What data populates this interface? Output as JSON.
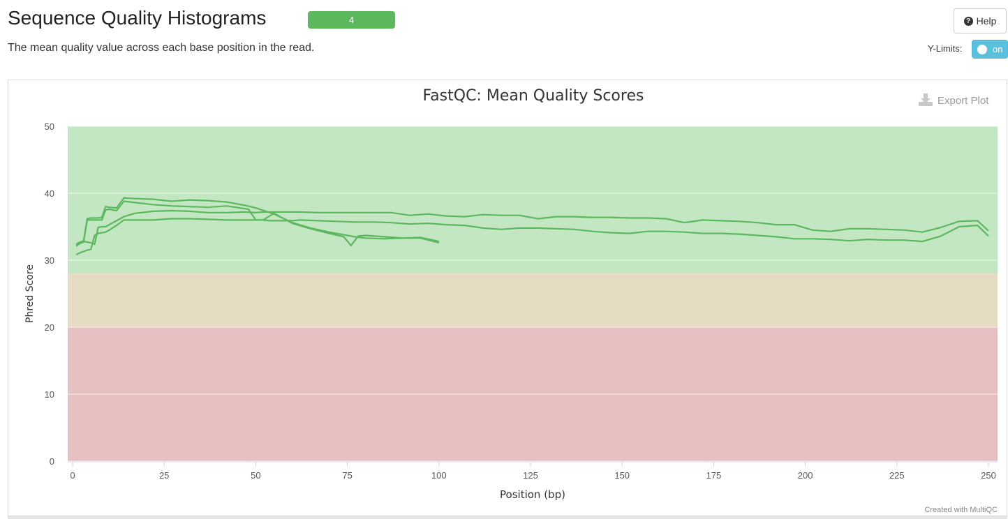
{
  "header": {
    "title": "Sequence Quality Histograms",
    "badge": "4",
    "subtitle": "The mean quality value across each base position in the read.",
    "help_label": "Help",
    "ylimits_label": "Y-Limits:",
    "ylimits_toggle": "on"
  },
  "plot": {
    "export_label": "Export Plot",
    "credit": "Created with MultiQC"
  },
  "colors": {
    "line": "#5cb85c",
    "band_good": "#c3e6c3",
    "band_warn": "#e6dcc3",
    "band_fail": "#e6c0c0"
  },
  "chart_data": {
    "type": "line",
    "title": "FastQC: Mean Quality Scores",
    "xlabel": "Position (bp)",
    "ylabel": "Phred Score",
    "xlim": [
      0,
      251
    ],
    "ylim": [
      0,
      50
    ],
    "x_ticks": [
      "0",
      "25",
      "50",
      "75",
      "100",
      "125",
      "150",
      "175",
      "200",
      "225",
      "250"
    ],
    "y_ticks": [
      "0",
      "10",
      "20",
      "30",
      "40",
      "50"
    ],
    "bands": [
      {
        "from": 28,
        "to": 50,
        "zone": "good"
      },
      {
        "from": 20,
        "to": 28,
        "zone": "warn"
      },
      {
        "from": 0,
        "to": 20,
        "zone": "fail"
      }
    ],
    "grid": true,
    "series": [
      {
        "x": [
          1,
          2,
          3,
          4,
          5,
          6,
          7,
          8,
          9,
          10,
          12,
          14,
          17,
          22,
          27,
          32,
          37,
          42,
          47,
          50,
          52,
          54,
          57,
          60,
          62,
          67,
          72,
          77,
          82,
          87,
          92,
          97,
          102,
          107,
          112,
          117,
          122,
          127,
          132,
          137,
          142,
          147,
          152,
          157,
          162,
          167,
          172,
          177,
          182,
          187,
          192,
          197,
          202,
          207,
          212,
          217,
          222,
          227,
          232,
          237,
          242,
          247,
          250
        ],
        "y": [
          32.2,
          32.6,
          32.8,
          32.7,
          32.6,
          32.4,
          34.9,
          35.0,
          35.0,
          35.3,
          35.9,
          36.5,
          37.0,
          37.3,
          37.4,
          37.3,
          37.1,
          37.1,
          37.2,
          37.1,
          37.2,
          37.2,
          37.2,
          37.2,
          37.2,
          37.1,
          37.1,
          37.1,
          37.1,
          37.1,
          36.7,
          36.9,
          36.6,
          36.5,
          36.8,
          36.7,
          36.7,
          36.2,
          36.5,
          36.5,
          36.4,
          36.4,
          36.3,
          36.3,
          36.2,
          35.6,
          36.0,
          35.9,
          35.8,
          35.6,
          35.3,
          35.3,
          34.5,
          34.3,
          34.7,
          34.7,
          34.6,
          34.5,
          34.2,
          34.9,
          35.8,
          35.9,
          34.4
        ]
      },
      {
        "x": [
          1,
          2,
          3,
          4,
          5,
          6,
          7,
          8,
          9,
          10,
          12,
          14,
          17,
          22,
          27,
          32,
          37,
          42,
          47,
          50,
          52,
          54,
          57,
          60,
          62,
          67,
          72,
          77,
          82,
          87,
          92,
          97,
          102,
          107,
          112,
          117,
          122,
          127,
          132,
          137,
          142,
          147,
          152,
          157,
          162,
          167,
          172,
          177,
          182,
          187,
          192,
          197,
          202,
          207,
          212,
          217,
          222,
          227,
          232,
          237,
          242,
          247,
          250
        ],
        "y": [
          30.8,
          31.1,
          31.3,
          31.5,
          31.6,
          33.7,
          34.0,
          34.1,
          34.2,
          34.5,
          35.2,
          36.0,
          36.0,
          36.0,
          36.2,
          36.2,
          36.1,
          36.0,
          36.0,
          36.0,
          36.0,
          35.9,
          35.9,
          35.9,
          36.0,
          35.9,
          35.8,
          35.7,
          35.7,
          35.6,
          35.4,
          35.5,
          35.3,
          35.2,
          34.8,
          34.6,
          34.8,
          34.8,
          34.7,
          34.6,
          34.3,
          34.1,
          34.0,
          34.3,
          34.3,
          34.2,
          34.0,
          34.0,
          33.9,
          33.7,
          33.5,
          33.2,
          33.2,
          33.1,
          32.9,
          33.1,
          33.0,
          33.0,
          32.8,
          33.6,
          35.0,
          35.2,
          33.6
        ]
      },
      {
        "x": [
          1,
          2,
          3,
          4,
          5,
          6,
          7,
          8,
          9,
          10,
          12,
          14,
          17,
          22,
          27,
          32,
          37,
          42,
          47,
          50,
          55,
          60,
          65,
          70,
          75,
          77,
          80,
          85,
          90,
          95,
          100
        ],
        "y": [
          32.1,
          32.5,
          32.7,
          36.2,
          36.3,
          36.3,
          36.3,
          36.4,
          38.0,
          37.9,
          37.8,
          39.3,
          39.2,
          39.1,
          38.8,
          39.0,
          38.9,
          38.7,
          38.2,
          37.8,
          36.9,
          35.6,
          34.8,
          34.2,
          33.7,
          33.5,
          33.3,
          33.2,
          33.3,
          33.4,
          32.8
        ]
      },
      {
        "x": [
          1,
          2,
          3,
          4,
          5,
          6,
          7,
          8,
          9,
          10,
          12,
          14,
          17,
          22,
          27,
          32,
          37,
          42,
          47,
          48,
          50,
          52,
          55,
          60,
          65,
          70,
          74,
          76,
          78,
          80,
          85,
          90,
          95,
          100
        ],
        "y": [
          32.4,
          32.7,
          32.9,
          36.0,
          36.0,
          36.0,
          36.0,
          36.0,
          37.5,
          37.6,
          37.4,
          38.8,
          38.6,
          38.3,
          38.1,
          38.0,
          37.9,
          38.1,
          37.7,
          37.6,
          36.0,
          36.0,
          37.0,
          35.5,
          34.7,
          34.0,
          33.5,
          32.2,
          33.6,
          33.7,
          33.5,
          33.3,
          33.3,
          32.6
        ]
      }
    ]
  }
}
